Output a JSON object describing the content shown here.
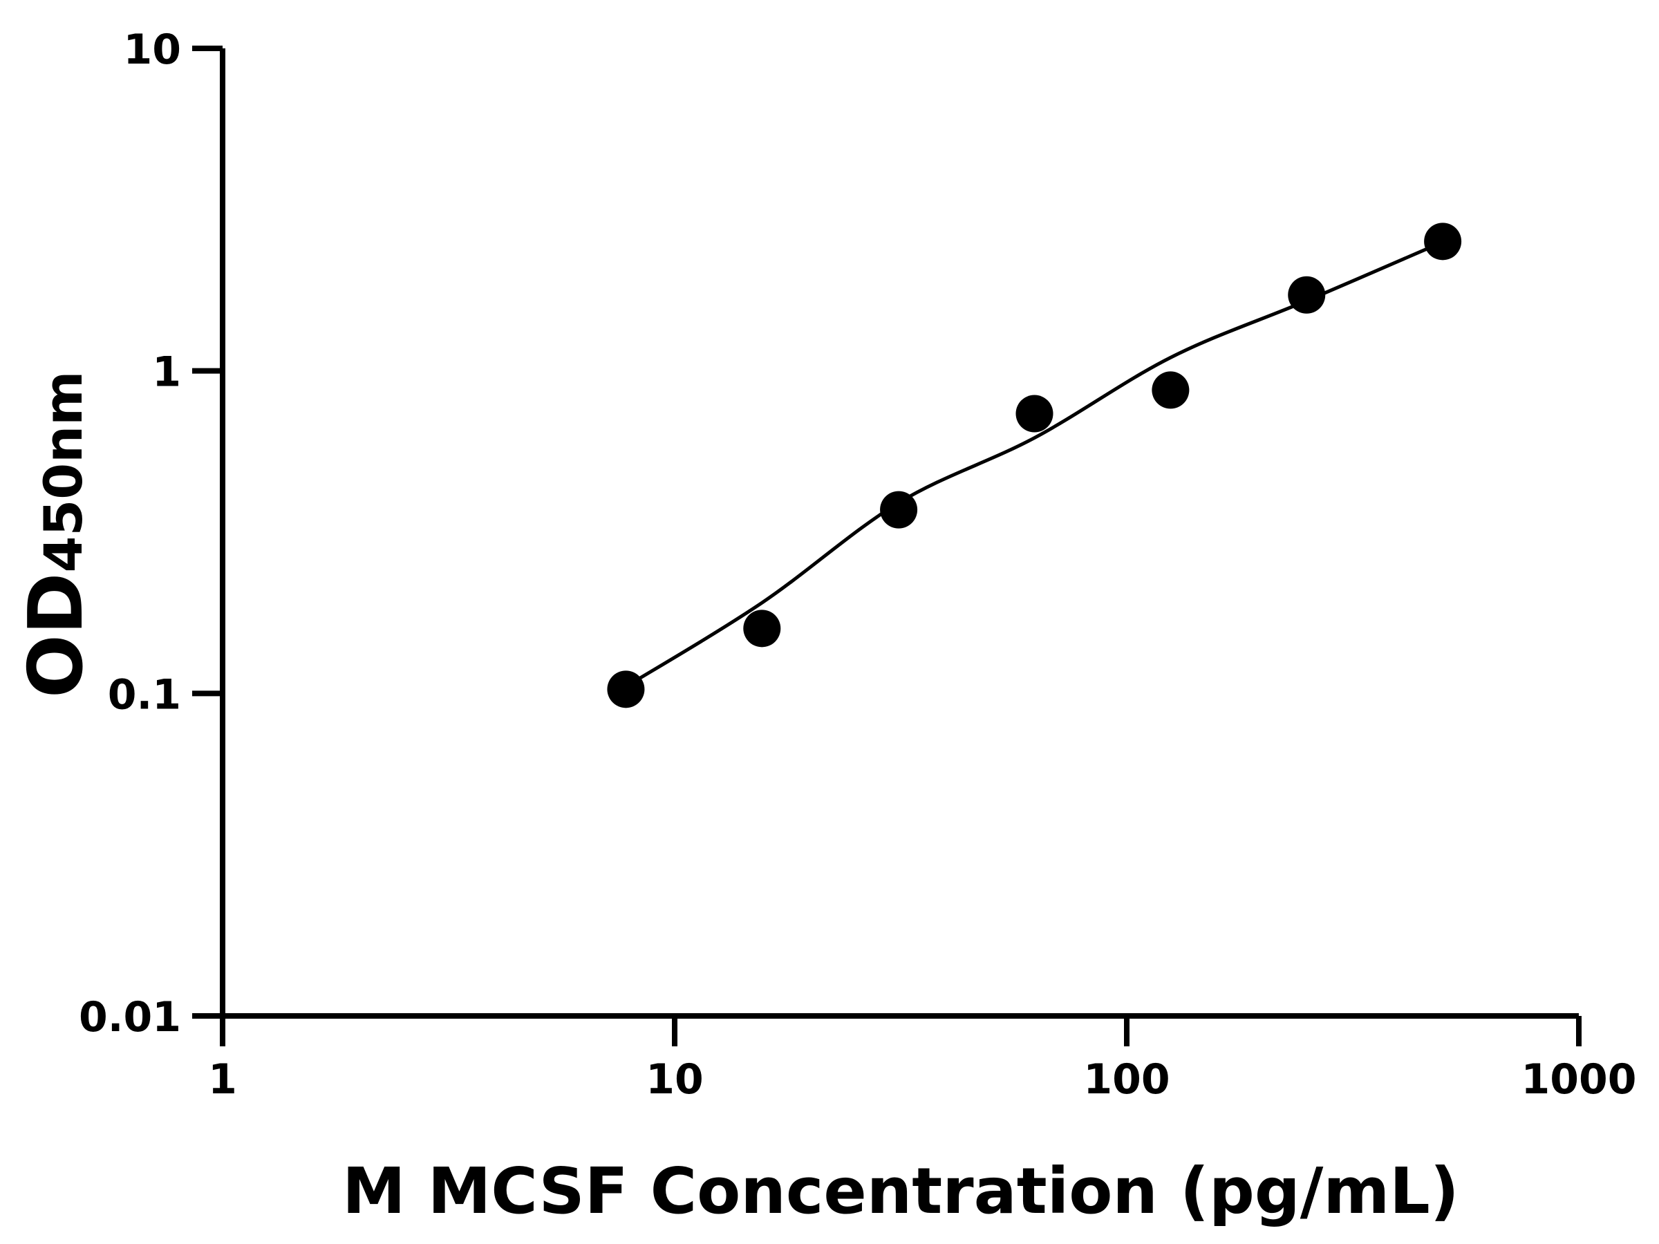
{
  "chart_data": {
    "type": "scatter",
    "title": "",
    "xlabel": "M MCSF Concentration (pg/mL)",
    "ylabel": {
      "main": "OD",
      "subscript": "450nm"
    },
    "xscale": "log",
    "yscale": "log",
    "xlim": [
      1,
      1000
    ],
    "ylim": [
      0.01,
      10
    ],
    "xticks": [
      "1",
      "10",
      "100",
      "1000"
    ],
    "yticks": [
      "0.01",
      "0.1",
      "1",
      "10"
    ],
    "grid": false,
    "legend": "none",
    "points": {
      "x": [
        7.8,
        15.6,
        31.3,
        62.5,
        125,
        250,
        500
      ],
      "y": [
        0.103,
        0.159,
        0.371,
        0.737,
        0.872,
        1.72,
        2.52
      ]
    },
    "fit_curve": {
      "x": [
        7.8,
        15.6,
        31.3,
        62.5,
        125,
        250,
        500
      ],
      "y": [
        0.105,
        0.191,
        0.39,
        0.62,
        1.1,
        1.65,
        2.51
      ]
    },
    "colors": {
      "points": "#000000",
      "curve": "#000000",
      "axes": "#000000"
    }
  }
}
